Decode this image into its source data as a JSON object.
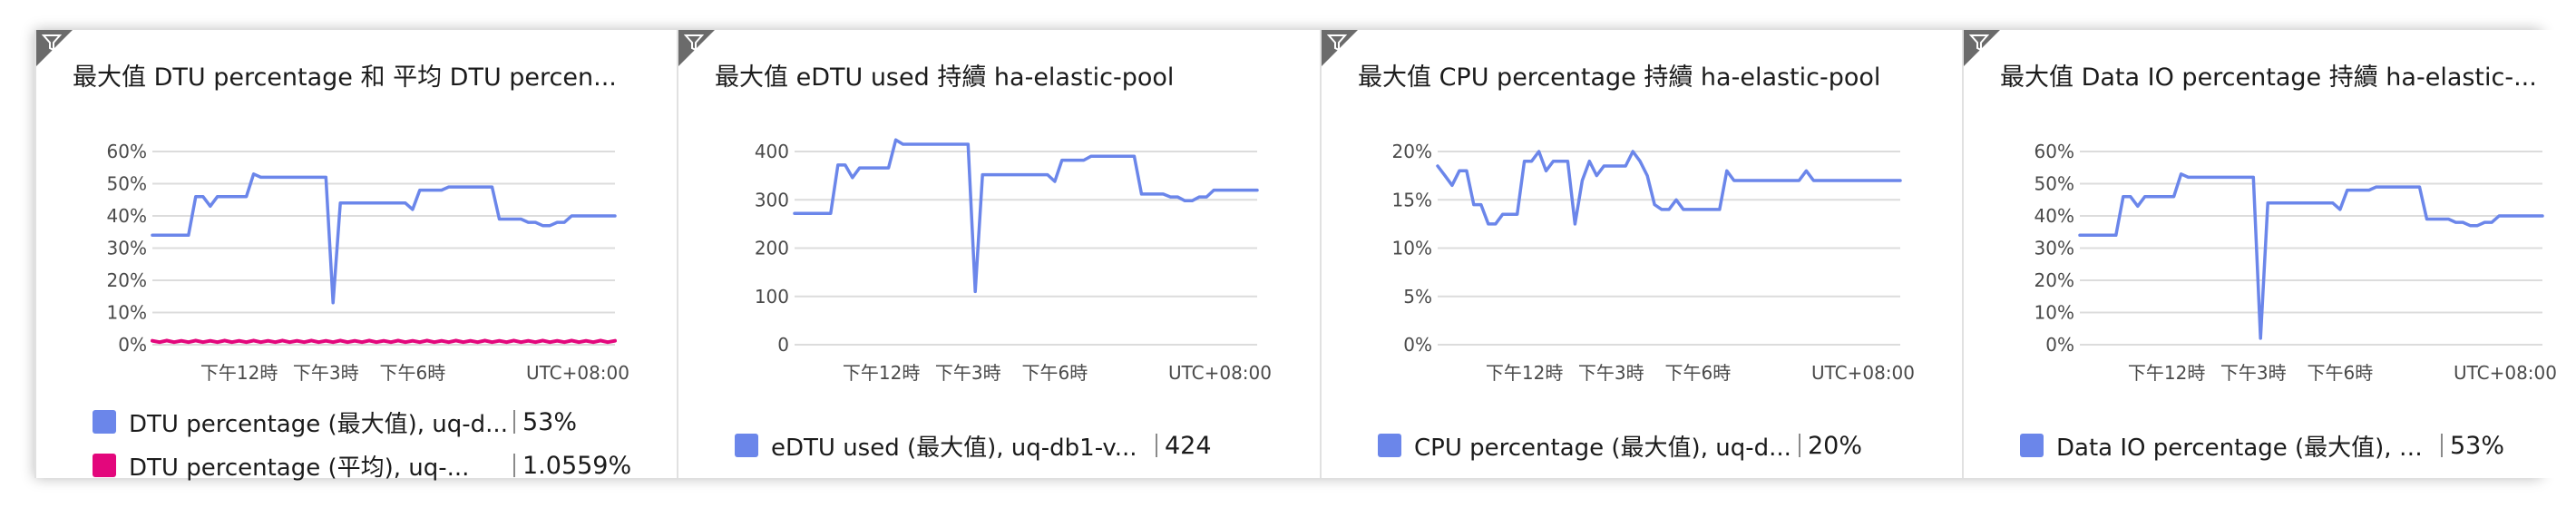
{
  "tiles": [
    {
      "title": "最大值 DTU percentage 和 平均 DTU percen...",
      "legend": [
        {
          "label": "DTU percentage (最大值), uq-d...",
          "value": "53%",
          "color": "#6b86ea"
        },
        {
          "label": "DTU percentage (平均), uq-...",
          "value": "1.0559%",
          "color": "#e3077c"
        }
      ]
    },
    {
      "title": "最大值 eDTU used 持續 ha-elastic-pool",
      "legend": [
        {
          "label": "eDTU used (最大值), uq-db1-v...",
          "value": "424",
          "color": "#6b86ea"
        }
      ]
    },
    {
      "title": "最大值 CPU percentage 持續 ha-elastic-pool",
      "legend": [
        {
          "label": "CPU percentage (最大值), uq-d...",
          "value": "20%",
          "color": "#6b86ea"
        }
      ]
    },
    {
      "title": "最大值 Data IO percentage 持續 ha-elastic-...",
      "legend": [
        {
          "label": "Data IO percentage (最大值), u...",
          "value": "53%",
          "color": "#6b86ea"
        }
      ]
    }
  ],
  "chart_data": [
    {
      "type": "line",
      "title": "最大值 DTU percentage 和 平均 DTU percen...",
      "x": [
        0,
        1,
        2,
        3,
        4,
        5,
        6,
        7,
        8,
        9,
        10,
        11,
        12,
        13,
        14,
        15,
        16,
        17,
        18,
        19,
        20,
        21,
        22,
        23,
        24,
        25,
        26,
        27,
        28,
        29,
        30,
        31,
        32,
        33,
        34,
        35,
        36,
        37,
        38,
        39,
        40,
        41,
        42,
        43,
        44,
        45,
        46,
        47,
        48,
        49,
        50,
        51,
        52,
        53,
        54,
        55,
        56,
        57,
        58,
        59,
        60,
        61,
        62,
        63,
        64
      ],
      "x_tick_labels": [
        "下午12時",
        "下午3時",
        "下午6時"
      ],
      "x_tick_positions": [
        12,
        24,
        36
      ],
      "timezone_label": "UTC+08:00",
      "yticks": [
        0,
        10,
        20,
        30,
        40,
        50,
        60
      ],
      "ytick_labels": [
        "0%",
        "10%",
        "20%",
        "30%",
        "40%",
        "50%",
        "60%"
      ],
      "ylim": [
        0,
        60
      ],
      "series": [
        {
          "name": "DTU percentage (最大值), uq-d...",
          "color": "#6b86ea",
          "values": [
            34,
            34,
            34,
            34,
            34,
            34,
            46,
            46,
            43,
            46,
            46,
            46,
            46,
            46,
            53,
            52,
            52,
            52,
            52,
            52,
            52,
            52,
            52,
            52,
            52,
            13,
            44,
            44,
            44,
            44,
            44,
            44,
            44,
            44,
            44,
            44,
            42,
            48,
            48,
            48,
            48,
            49,
            49,
            49,
            49,
            49,
            49,
            49,
            39,
            39,
            39,
            39,
            38,
            38,
            37,
            37,
            38,
            38,
            40,
            40,
            40,
            40,
            40,
            40,
            40
          ]
        },
        {
          "name": "DTU percentage (平均), uq-...",
          "color": "#e3077c",
          "values": [
            1.2,
            0.8,
            1.3,
            0.8,
            1.2,
            0.8,
            1.3,
            0.8,
            1.2,
            0.8,
            1.3,
            0.8,
            1.2,
            0.8,
            1.3,
            0.8,
            1.2,
            0.8,
            1.3,
            0.8,
            1.2,
            0.8,
            1.3,
            0.8,
            1.2,
            0.8,
            1.3,
            0.8,
            1.2,
            0.8,
            1.3,
            0.8,
            1.2,
            0.8,
            1.3,
            0.8,
            1.2,
            0.8,
            1.3,
            0.8,
            1.2,
            0.8,
            1.3,
            0.8,
            1.2,
            0.8,
            1.3,
            0.8,
            1.2,
            0.8,
            1.3,
            0.8,
            1.2,
            0.8,
            1.3,
            0.8,
            1.2,
            0.8,
            1.3,
            0.8,
            1.2,
            0.8,
            1.3,
            0.8,
            1.2
          ]
        }
      ]
    },
    {
      "type": "line",
      "title": "最大值 eDTU used 持續 ha-elastic-pool",
      "x": [
        0,
        1,
        2,
        3,
        4,
        5,
        6,
        7,
        8,
        9,
        10,
        11,
        12,
        13,
        14,
        15,
        16,
        17,
        18,
        19,
        20,
        21,
        22,
        23,
        24,
        25,
        26,
        27,
        28,
        29,
        30,
        31,
        32,
        33,
        34,
        35,
        36,
        37,
        38,
        39,
        40,
        41,
        42,
        43,
        44,
        45,
        46,
        47,
        48,
        49,
        50,
        51,
        52,
        53,
        54,
        55,
        56,
        57,
        58,
        59,
        60,
        61,
        62,
        63,
        64
      ],
      "x_tick_labels": [
        "下午12時",
        "下午3時",
        "下午6時"
      ],
      "x_tick_positions": [
        12,
        24,
        36
      ],
      "timezone_label": "UTC+08:00",
      "yticks": [
        0,
        100,
        200,
        300,
        400
      ],
      "ytick_labels": [
        "0",
        "100",
        "200",
        "300",
        "400"
      ],
      "ylim": [
        0,
        400
      ],
      "series": [
        {
          "name": "eDTU used (最大值), uq-db1-v...",
          "color": "#6b86ea",
          "values": [
            272,
            272,
            272,
            272,
            272,
            272,
            372,
            372,
            346,
            366,
            366,
            366,
            366,
            366,
            424,
            415,
            415,
            415,
            415,
            415,
            415,
            415,
            415,
            415,
            415,
            110,
            352,
            352,
            352,
            352,
            352,
            352,
            352,
            352,
            352,
            352,
            338,
            382,
            382,
            382,
            382,
            390,
            390,
            390,
            390,
            390,
            390,
            390,
            312,
            312,
            312,
            312,
            306,
            306,
            298,
            298,
            306,
            306,
            320,
            320,
            320,
            320,
            320,
            320,
            320
          ]
        }
      ]
    },
    {
      "type": "line",
      "title": "最大值 CPU percentage 持續 ha-elastic-pool",
      "x": [
        0,
        1,
        2,
        3,
        4,
        5,
        6,
        7,
        8,
        9,
        10,
        11,
        12,
        13,
        14,
        15,
        16,
        17,
        18,
        19,
        20,
        21,
        22,
        23,
        24,
        25,
        26,
        27,
        28,
        29,
        30,
        31,
        32,
        33,
        34,
        35,
        36,
        37,
        38,
        39,
        40,
        41,
        42,
        43,
        44,
        45,
        46,
        47,
        48,
        49,
        50,
        51,
        52,
        53,
        54,
        55,
        56,
        57,
        58,
        59,
        60,
        61,
        62,
        63,
        64
      ],
      "x_tick_labels": [
        "下午12時",
        "下午3時",
        "下午6時"
      ],
      "x_tick_positions": [
        12,
        24,
        36
      ],
      "timezone_label": "UTC+08:00",
      "yticks": [
        0,
        5,
        10,
        15,
        20
      ],
      "ytick_labels": [
        "0%",
        "5%",
        "10%",
        "15%",
        "20%"
      ],
      "ylim": [
        0,
        20
      ],
      "series": [
        {
          "name": "CPU percentage (最大值), uq-d...",
          "color": "#6b86ea",
          "values": [
            18.5,
            17.5,
            16.5,
            18,
            18,
            14.5,
            14.5,
            12.5,
            12.5,
            13.5,
            13.5,
            13.5,
            19,
            19,
            20,
            18,
            19,
            19,
            19,
            12.5,
            17,
            19,
            17.5,
            18.5,
            18.5,
            18.5,
            18.5,
            20,
            19,
            17.5,
            14.5,
            14,
            14,
            15,
            14,
            14,
            14,
            14,
            14,
            14,
            18,
            17,
            17,
            17,
            17,
            17,
            17,
            17,
            17,
            17,
            17,
            18,
            17,
            17,
            17,
            17,
            17,
            17,
            17,
            17,
            17,
            17,
            17,
            17,
            17
          ]
        }
      ]
    },
    {
      "type": "line",
      "title": "最大值 Data IO percentage 持續 ha-elastic-...",
      "x": [
        0,
        1,
        2,
        3,
        4,
        5,
        6,
        7,
        8,
        9,
        10,
        11,
        12,
        13,
        14,
        15,
        16,
        17,
        18,
        19,
        20,
        21,
        22,
        23,
        24,
        25,
        26,
        27,
        28,
        29,
        30,
        31,
        32,
        33,
        34,
        35,
        36,
        37,
        38,
        39,
        40,
        41,
        42,
        43,
        44,
        45,
        46,
        47,
        48,
        49,
        50,
        51,
        52,
        53,
        54,
        55,
        56,
        57,
        58,
        59,
        60,
        61,
        62,
        63,
        64
      ],
      "x_tick_labels": [
        "下午12時",
        "下午3時",
        "下午6時"
      ],
      "x_tick_positions": [
        12,
        24,
        36
      ],
      "timezone_label": "UTC+08:00",
      "yticks": [
        0,
        10,
        20,
        30,
        40,
        50,
        60
      ],
      "ytick_labels": [
        "0%",
        "10%",
        "20%",
        "30%",
        "40%",
        "50%",
        "60%"
      ],
      "ylim": [
        0,
        60
      ],
      "series": [
        {
          "name": "Data IO percentage (最大值), u...",
          "color": "#6b86ea",
          "values": [
            34,
            34,
            34,
            34,
            34,
            34,
            46,
            46,
            43,
            46,
            46,
            46,
            46,
            46,
            53,
            52,
            52,
            52,
            52,
            52,
            52,
            52,
            52,
            52,
            52,
            2,
            44,
            44,
            44,
            44,
            44,
            44,
            44,
            44,
            44,
            44,
            42,
            48,
            48,
            48,
            48,
            49,
            49,
            49,
            49,
            49,
            49,
            49,
            39,
            39,
            39,
            39,
            38,
            38,
            37,
            37,
            38,
            38,
            40,
            40,
            40,
            40,
            40,
            40,
            40
          ]
        }
      ]
    }
  ]
}
